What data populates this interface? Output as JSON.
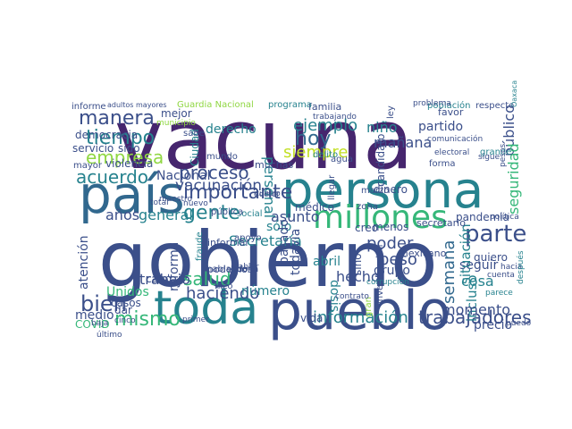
{
  "palette": {
    "dark_purple": "#46266e",
    "indigo": "#3b4f8a",
    "blue": "#31688e",
    "teal": "#26828e",
    "green": "#35b779",
    "lime": "#90d743",
    "yellow": "#c2df23"
  },
  "words": [
    {
      "text": "vacuna",
      "color": "dark_purple"
    },
    {
      "text": "gobierno",
      "color": "indigo"
    },
    {
      "text": "persona",
      "color": "teal"
    },
    {
      "text": "país",
      "color": "blue"
    },
    {
      "text": "pueblo",
      "color": "indigo"
    },
    {
      "text": "toda",
      "color": "teal"
    },
    {
      "text": "millones",
      "color": "green"
    },
    {
      "text": "manera",
      "color": "indigo"
    },
    {
      "text": "tiempo",
      "color": "teal"
    },
    {
      "text": "empresa",
      "color": "lime"
    },
    {
      "text": "acuerdo",
      "color": "teal"
    },
    {
      "text": "importante",
      "color": "indigo"
    },
    {
      "text": "gente",
      "color": "teal"
    },
    {
      "text": "hoy",
      "color": "blue"
    },
    {
      "text": "siempre",
      "color": "yellow"
    },
    {
      "text": "parte",
      "color": "indigo"
    },
    {
      "text": "bien",
      "color": "indigo"
    },
    {
      "text": "mismo",
      "color": "green"
    },
    {
      "text": "salud",
      "color": "green"
    },
    {
      "text": "trabajadores",
      "color": "indigo"
    },
    {
      "text": "información",
      "color": "teal"
    },
    {
      "text": "Secretaría",
      "color": "teal"
    },
    {
      "text": "trabajo",
      "color": "indigo"
    },
    {
      "text": "haciendo",
      "color": "indigo"
    },
    {
      "text": "proceso",
      "color": "indigo"
    },
    {
      "text": "vacunación",
      "color": "indigo"
    },
    {
      "text": "Nacional",
      "color": "indigo"
    },
    {
      "text": "derecho",
      "color": "teal"
    },
    {
      "text": "general",
      "color": "teal"
    },
    {
      "text": "años",
      "color": "indigo"
    },
    {
      "text": "asunto",
      "color": "indigo"
    },
    {
      "text": "mañana",
      "color": "indigo"
    },
    {
      "text": "ejemplo",
      "color": "teal"
    },
    {
      "text": "personal",
      "color": "teal"
    },
    {
      "text": "niño",
      "color": "teal"
    },
    {
      "text": "partido",
      "color": "indigo"
    },
    {
      "text": "público",
      "color": "indigo"
    },
    {
      "text": "cosa",
      "color": "teal"
    },
    {
      "text": "seguridad",
      "color": "green"
    },
    {
      "text": "seguir",
      "color": "indigo"
    },
    {
      "text": "situación",
      "color": "teal"
    },
    {
      "text": "semana",
      "color": "blue"
    },
    {
      "text": "incluso",
      "color": "teal"
    },
    {
      "text": "poder",
      "color": "indigo"
    },
    {
      "text": "peso",
      "color": "indigo"
    },
    {
      "text": "grupo",
      "color": "indigo"
    },
    {
      "text": "momento",
      "color": "indigo"
    },
    {
      "text": "precio",
      "color": "indigo"
    },
    {
      "text": "hecho",
      "color": "indigo"
    },
    {
      "text": "dosis",
      "color": "teal"
    },
    {
      "text": "abril",
      "color": "teal"
    },
    {
      "text": "sólo",
      "color": "teal"
    },
    {
      "text": "médico",
      "color": "indigo"
    },
    {
      "text": "pasado",
      "color": "indigo"
    },
    {
      "text": "todavía",
      "color": "indigo"
    },
    {
      "text": "número",
      "color": "teal"
    },
    {
      "text": "Unidos",
      "color": "green"
    },
    {
      "text": "reforma",
      "color": "indigo"
    },
    {
      "text": "cabo",
      "color": "indigo"
    },
    {
      "text": "atención",
      "color": "indigo"
    },
    {
      "text": "medio",
      "color": "indigo"
    },
    {
      "text": "casos",
      "color": "indigo"
    },
    {
      "text": "COVID",
      "color": "green"
    },
    {
      "text": "dar",
      "color": "indigo"
    },
    {
      "text": "servicio",
      "color": "indigo"
    },
    {
      "text": "sido",
      "color": "indigo"
    },
    {
      "text": "democracia",
      "color": "indigo"
    },
    {
      "text": "mejor",
      "color": "indigo"
    },
    {
      "text": "Guardia Nacional",
      "color": "lime"
    },
    {
      "text": "violencia",
      "color": "indigo"
    },
    {
      "text": "mayor",
      "color": "indigo"
    },
    {
      "text": "informe",
      "color": "indigo"
    },
    {
      "text": "Ciudad",
      "color": "teal"
    },
    {
      "text": "creo",
      "color": "indigo"
    },
    {
      "text": "menos",
      "color": "indigo"
    },
    {
      "text": "secretario",
      "color": "indigo"
    },
    {
      "text": "sino",
      "color": "indigo"
    },
    {
      "text": "candidato",
      "color": "indigo"
    },
    {
      "text": "pandemia",
      "color": "indigo"
    },
    {
      "text": "vida",
      "color": "indigo"
    },
    {
      "text": "mexicano",
      "color": "indigo"
    },
    {
      "text": "dinero",
      "color": "indigo"
    },
    {
      "text": "quiero",
      "color": "indigo"
    },
    {
      "text": "favor",
      "color": "indigo"
    },
    {
      "text": "familia",
      "color": "indigo"
    },
    {
      "text": "programa",
      "color": "teal"
    },
    {
      "text": "población",
      "color": "teal"
    },
    {
      "text": "respecto",
      "color": "indigo"
    },
    {
      "text": "muchas",
      "color": "indigo"
    },
    {
      "text": "hablando",
      "color": "indigo"
    },
    {
      "text": "informar",
      "color": "indigo"
    },
    {
      "text": "podemos",
      "color": "indigo"
    },
    {
      "text": "apoyo",
      "color": "indigo"
    },
    {
      "text": "fraude",
      "color": "teal"
    },
    {
      "text": "buena",
      "color": "indigo"
    },
    {
      "text": "hizo",
      "color": "indigo"
    },
    {
      "text": "mundo",
      "color": "indigo"
    },
    {
      "text": "sabe",
      "color": "indigo"
    },
    {
      "text": "social",
      "color": "teal"
    },
    {
      "text": "pública",
      "color": "indigo"
    },
    {
      "text": "maestro",
      "color": "indigo"
    },
    {
      "text": "nuevo",
      "color": "indigo"
    },
    {
      "text": "agua",
      "color": "indigo"
    },
    {
      "text": "delito",
      "color": "teal"
    },
    {
      "text": "llegar",
      "color": "indigo"
    },
    {
      "text": "zona",
      "color": "indigo"
    },
    {
      "text": "marzo",
      "color": "indigo"
    },
    {
      "text": "electoral",
      "color": "indigo"
    },
    {
      "text": "forma",
      "color": "indigo"
    },
    {
      "text": "grande",
      "color": "teal"
    },
    {
      "text": "sigue",
      "color": "indigo"
    },
    {
      "text": "parece",
      "color": "teal"
    },
    {
      "text": "cuenta",
      "color": "indigo"
    },
    {
      "text": "puedo",
      "color": "indigo"
    },
    {
      "text": "hacia",
      "color": "indigo"
    },
    {
      "text": "después",
      "color": "teal"
    },
    {
      "text": "gran",
      "color": "lime"
    },
    {
      "text": "investigación",
      "color": "indigo"
    },
    {
      "text": "corrupción",
      "color": "teal"
    },
    {
      "text": "ley",
      "color": "indigo"
    },
    {
      "text": "problema",
      "color": "indigo"
    },
    {
      "text": "adultos mayores",
      "color": "indigo"
    },
    {
      "text": "municipio",
      "color": "lime"
    },
    {
      "text": "trabajando",
      "color": "indigo"
    },
    {
      "text": "último",
      "color": "indigo"
    },
    {
      "text": "baja",
      "color": "indigo"
    },
    {
      "text": "cinco",
      "color": "indigo"
    },
    {
      "text": "hablar",
      "color": "indigo"
    },
    {
      "text": "contrato",
      "color": "indigo"
    },
    {
      "text": "total",
      "color": "indigo"
    },
    {
      "text": "cuatro",
      "color": "indigo"
    },
    {
      "text": "doctor",
      "color": "indigo"
    },
    {
      "text": "primer",
      "color": "indigo"
    },
    {
      "text": "pesos",
      "color": "indigo"
    },
    {
      "text": "Oaxaca",
      "color": "teal"
    },
    {
      "text": "política",
      "color": "indigo"
    },
    {
      "text": "comunicación",
      "color": "indigo"
    },
    {
      "text": "plan",
      "color": "indigo"
    },
    {
      "text": "periodo",
      "color": "indigo"
    }
  ]
}
